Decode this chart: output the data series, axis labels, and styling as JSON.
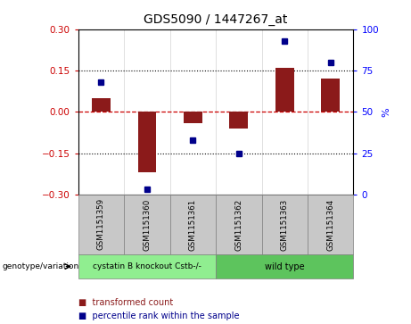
{
  "title": "GDS5090 / 1447267_at",
  "samples": [
    "GSM1151359",
    "GSM1151360",
    "GSM1151361",
    "GSM1151362",
    "GSM1151363",
    "GSM1151364"
  ],
  "bar_values": [
    0.05,
    -0.22,
    -0.04,
    -0.06,
    0.16,
    0.12
  ],
  "dot_percentiles": [
    68,
    3,
    33,
    25,
    93,
    80
  ],
  "groups": [
    {
      "label": "cystatin B knockout Cstb-/-",
      "n": 3,
      "color": "#90EE90"
    },
    {
      "label": "wild type",
      "n": 3,
      "color": "#5DC45D"
    }
  ],
  "ylim": [
    -0.3,
    0.3
  ],
  "yticks_left": [
    -0.3,
    -0.15,
    0.0,
    0.15,
    0.3
  ],
  "yticks_right": [
    0,
    25,
    50,
    75,
    100
  ],
  "bar_color": "#8B1A1A",
  "dot_color": "#00008B",
  "zero_line_color": "#CC0000",
  "background_color": "#FFFFFF",
  "legend_items": [
    "transformed count",
    "percentile rank within the sample"
  ],
  "legend_colors": [
    "#8B1A1A",
    "#00008B"
  ],
  "genotype_label": "genotype/variation",
  "right_axis_label": "%",
  "sample_box_color": "#C8C8C8"
}
